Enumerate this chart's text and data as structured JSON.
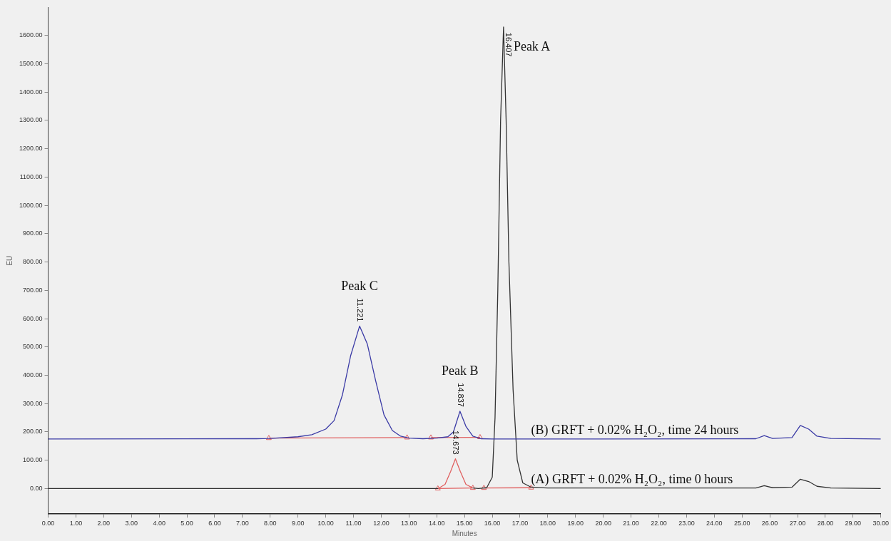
{
  "chart_data": {
    "type": "line",
    "xlabel": "Minutes",
    "ylabel": "EU",
    "xlim": [
      0,
      30
    ],
    "ylim": [
      -90,
      1700
    ],
    "xticks": [
      {
        "value": 0,
        "label": "0.00"
      },
      {
        "value": 1,
        "label": "1.00"
      },
      {
        "value": 2,
        "label": "2.00"
      },
      {
        "value": 3,
        "label": "3.00"
      },
      {
        "value": 4,
        "label": "4.00"
      },
      {
        "value": 5,
        "label": "5.00"
      },
      {
        "value": 6,
        "label": "6.00"
      },
      {
        "value": 7,
        "label": "7.00"
      },
      {
        "value": 8,
        "label": "8.00"
      },
      {
        "value": 9,
        "label": "9.00"
      },
      {
        "value": 10,
        "label": "10.00"
      },
      {
        "value": 11,
        "label": "11.00"
      },
      {
        "value": 12,
        "label": "12.00"
      },
      {
        "value": 13,
        "label": "13.00"
      },
      {
        "value": 14,
        "label": "14.00"
      },
      {
        "value": 15,
        "label": "15.00"
      },
      {
        "value": 16,
        "label": "16.00"
      },
      {
        "value": 17,
        "label": "17.00"
      },
      {
        "value": 18,
        "label": "18.00"
      },
      {
        "value": 19,
        "label": "19.00"
      },
      {
        "value": 20,
        "label": "20.00"
      },
      {
        "value": 21,
        "label": "21.00"
      },
      {
        "value": 22,
        "label": "22.00"
      },
      {
        "value": 23,
        "label": "23.00"
      },
      {
        "value": 24,
        "label": "24.00"
      },
      {
        "value": 25,
        "label": "25.00"
      },
      {
        "value": 26,
        "label": "26.00"
      },
      {
        "value": 27,
        "label": "27.00"
      },
      {
        "value": 28,
        "label": "28.00"
      },
      {
        "value": 29,
        "label": "29.00"
      },
      {
        "value": 30,
        "label": "30.00"
      }
    ],
    "yticks": [
      {
        "value": 0,
        "label": "0.00"
      },
      {
        "value": 100,
        "label": "100.00"
      },
      {
        "value": 200,
        "label": "200.00"
      },
      {
        "value": 300,
        "label": "300.00"
      },
      {
        "value": 400,
        "label": "400.00"
      },
      {
        "value": 500,
        "label": "500.00"
      },
      {
        "value": 600,
        "label": "600.00"
      },
      {
        "value": 700,
        "label": "700.00"
      },
      {
        "value": 800,
        "label": "800.00"
      },
      {
        "value": 900,
        "label": "900.00"
      },
      {
        "value": 1000,
        "label": "1000.00"
      },
      {
        "value": 1100,
        "label": "1100.00"
      },
      {
        "value": 1200,
        "label": "1200.00"
      },
      {
        "value": 1300,
        "label": "1300.00"
      },
      {
        "value": 1400,
        "label": "1400.00"
      },
      {
        "value": 1500,
        "label": "1500.00"
      },
      {
        "value": 1600,
        "label": "1600.00"
      }
    ],
    "grid": false,
    "legend": false,
    "marker": "none",
    "line_style": "solid",
    "series": [
      {
        "name": "(B) GRFT + 0.02% H₂O₂, time 24 hours",
        "color": "#3b3ba6",
        "x": [
          0,
          7.5,
          8,
          9,
          9.5,
          10,
          10.3,
          10.6,
          10.9,
          11.221,
          11.5,
          11.8,
          12.1,
          12.4,
          12.7,
          13,
          13.5,
          14,
          14.4,
          14.6,
          14.837,
          15.05,
          15.3,
          15.6,
          16,
          20,
          25.5,
          25.8,
          26.1,
          26.8,
          27.1,
          27.4,
          27.7,
          28.2,
          30
        ],
        "values": [
          175,
          176,
          177,
          183,
          190,
          210,
          240,
          330,
          470,
          574,
          510,
          380,
          260,
          205,
          185,
          178,
          176,
          178,
          183,
          200,
          273,
          220,
          185,
          176,
          175,
          175,
          176,
          187,
          177,
          180,
          223,
          210,
          185,
          177,
          175
        ]
      },
      {
        "name": "(A) GRFT + 0.02% H₂O₂, time 0 hours",
        "color": "#333333",
        "x": [
          0,
          14,
          14.05,
          14.6,
          15.3,
          15.5,
          15.8,
          16,
          16.1,
          16.2,
          16.3,
          16.407,
          16.5,
          16.6,
          16.75,
          16.9,
          17.1,
          17.4,
          18,
          25.5,
          25.8,
          26.1,
          26.8,
          27.1,
          27.4,
          27.7,
          28.2,
          30
        ],
        "values": [
          0,
          0,
          0,
          null,
          2,
          0,
          3,
          40,
          250,
          700,
          1300,
          1630,
          1300,
          800,
          350,
          100,
          20,
          5,
          2,
          2,
          10,
          3,
          5,
          33,
          25,
          8,
          2,
          0
        ]
      },
      {
        "color": "#e06060",
        "x": [
          14.05,
          14.3,
          14.5,
          14.673,
          14.85,
          15.05,
          15.3
        ],
        "values": [
          0,
          15,
          60,
          105,
          60,
          15,
          2
        ]
      },
      {
        "color": "#e06060",
        "marker": "triangle",
        "x": [
          7.95,
          12.93
        ],
        "values": [
          178,
          180
        ]
      },
      {
        "color": "#e06060",
        "marker": "triangle",
        "x": [
          13.79,
          15.56
        ],
        "values": [
          180,
          181
        ]
      },
      {
        "color": "#e06060",
        "marker": "triangle",
        "x": [
          14.04,
          15.3
        ],
        "values": [
          0,
          2
        ]
      },
      {
        "color": "#e06060",
        "marker": "triangle",
        "x": [
          15.7,
          17.4
        ],
        "values": [
          2,
          3
        ]
      }
    ],
    "annotations": [
      {
        "text": "Peak A",
        "x": 16.407,
        "y": 1630
      },
      {
        "text": "Peak B",
        "x": 14.837,
        "y": 273
      },
      {
        "text": "Peak C",
        "x": 11.221,
        "y": 574
      },
      {
        "text": "16.407",
        "x": 16.407,
        "y": 1630
      },
      {
        "text": "14.837",
        "x": 14.837,
        "y": 273
      },
      {
        "text": "14.673",
        "x": 14.673,
        "y": 105
      },
      {
        "text": "11.221",
        "x": 11.221,
        "y": 574
      }
    ]
  }
}
